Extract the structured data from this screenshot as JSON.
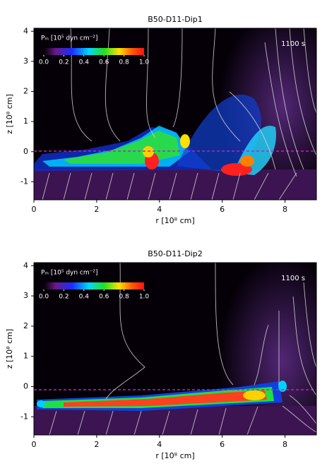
{
  "chart_data": [
    {
      "type": "heatmap",
      "title": "B50-D11-Dip1",
      "x_label": "r [10⁸ cm]",
      "y_label": "z [10⁸ cm]",
      "xlim": [
        0,
        9
      ],
      "ylim": [
        -1.6,
        4.1
      ],
      "xticks": [
        0,
        2,
        4,
        6,
        8
      ],
      "yticks": [
        -1,
        0,
        1,
        2,
        3,
        4
      ],
      "annotation": "1100 s",
      "colorbar": {
        "label": "Pₘ [10⁵ dyn cm⁻²]",
        "lim": [
          0,
          1
        ],
        "ticks": [
          {
            "value": 0,
            "label": "0.0"
          },
          0.2,
          0.4,
          0.6,
          0.8,
          {
            "value": 1,
            "label": "1.0"
          }
        ]
      }
    },
    {
      "type": "heatmap",
      "title": "B50-D11-Dip2",
      "x_label": "r [10⁸ cm]",
      "y_label": "z [10⁸ cm]",
      "xlim": [
        0,
        9
      ],
      "ylim": [
        -1.6,
        4.1
      ],
      "xticks": [
        0,
        2,
        4,
        6,
        8
      ],
      "yticks": [
        -1,
        0,
        1,
        2,
        3,
        4
      ],
      "annotation": "1100 s",
      "colorbar": {
        "label": "Pₘ [10⁵ dyn cm⁻²]",
        "lim": [
          0,
          1
        ],
        "ticks": [
          {
            "value": 0,
            "label": "0.0"
          },
          0.2,
          0.4,
          0.6,
          0.8,
          {
            "value": 1,
            "label": "1.0"
          }
        ]
      }
    }
  ]
}
